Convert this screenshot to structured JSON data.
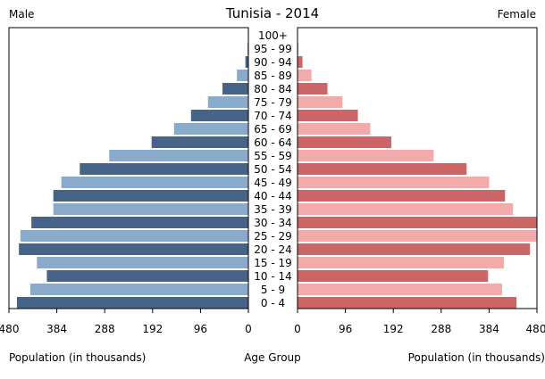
{
  "chart_data": {
    "type": "bar",
    "title": "Tunisia - 2014",
    "left_label": "Male",
    "right_label": "Female",
    "xlabel_left": "Population (in thousands)",
    "xlabel_center": "Age Group",
    "xlabel_right": "Population (in thousands)",
    "xlim": [
      0,
      480
    ],
    "xticks": [
      "480",
      "384",
      "288",
      "192",
      "96",
      "0"
    ],
    "xticks_right": [
      "0",
      "96",
      "192",
      "288",
      "384",
      "480"
    ],
    "categories": [
      "100+",
      "95 - 99",
      "90 - 94",
      "85 - 89",
      "80 - 84",
      "75 - 79",
      "70 - 74",
      "65 - 69",
      "60 - 64",
      "55 - 59",
      "50 - 54",
      "45 - 49",
      "40 - 44",
      "35 - 39",
      "30 - 34",
      "25 - 29",
      "20 - 24",
      "15 - 19",
      "10 - 14",
      "5 - 9",
      "0 - 4"
    ],
    "series": [
      {
        "name": "Male",
        "values": [
          1,
          2,
          6,
          23,
          52,
          81,
          115,
          149,
          194,
          279,
          338,
          375,
          391,
          391,
          435,
          457,
          460,
          424,
          404,
          437,
          464
        ]
      },
      {
        "name": "Female",
        "values": [
          1,
          2,
          10,
          28,
          60,
          90,
          121,
          146,
          188,
          273,
          339,
          384,
          416,
          432,
          481,
          481,
          466,
          414,
          382,
          410,
          439
        ]
      }
    ],
    "colors": {
      "male_dark": "#456487",
      "male_light": "#8aaacb",
      "female_dark": "#cc6666",
      "female_light": "#f2aaaa"
    }
  }
}
